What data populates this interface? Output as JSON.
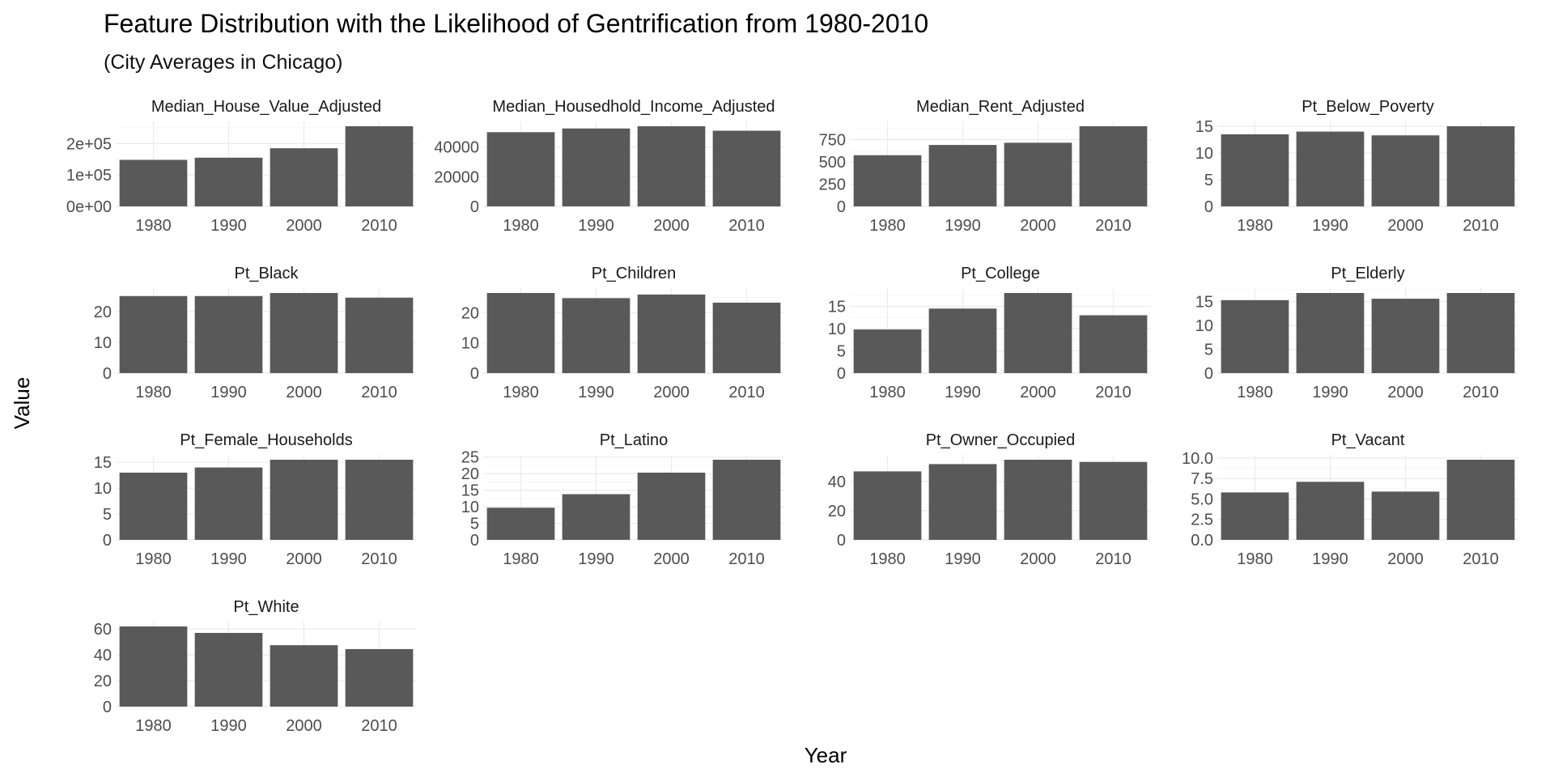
{
  "chart_data": {
    "type": "bar",
    "title": "Feature Distribution with the Likelihood of Gentrification from 1980-2010",
    "subtitle": "(City Averages in Chicago)",
    "xlabel": "Year",
    "ylabel": "Value",
    "categories": [
      "1980",
      "1990",
      "2000",
      "2010"
    ],
    "grid": true,
    "legend": "none",
    "bar_color": "#595959",
    "panels": [
      {
        "name": "Median_House_Value_Adjusted",
        "values": [
          148000,
          155000,
          185000,
          255000
        ],
        "ylim": [
          0,
          255000
        ],
        "yticks": [
          0,
          100000,
          200000
        ],
        "yticklabels": [
          "0e+00",
          "1e+05",
          "2e+05"
        ]
      },
      {
        "name": "Median_Housedhold_Income_Adjusted",
        "values": [
          50000,
          52500,
          54000,
          51000
        ],
        "ylim": [
          0,
          54000
        ],
        "yticks": [
          0,
          20000,
          40000
        ],
        "yticklabels": [
          "0",
          "20000",
          "40000"
        ]
      },
      {
        "name": "Median_Rent_Adjusted",
        "values": [
          575,
          690,
          715,
          900
        ],
        "ylim": [
          0,
          900
        ],
        "yticks": [
          0,
          250,
          500,
          750
        ],
        "yticklabels": [
          "0",
          "250",
          "500",
          "750"
        ]
      },
      {
        "name": "Pt_Below_Poverty",
        "values": [
          13.5,
          14,
          13.3,
          15
        ],
        "ylim": [
          0,
          15
        ],
        "yticks": [
          0,
          5,
          10,
          15
        ],
        "yticklabels": [
          "0",
          "5",
          "10",
          "15"
        ]
      },
      {
        "name": "Pt_Black",
        "values": [
          25,
          25,
          26,
          24.5
        ],
        "ylim": [
          0,
          26
        ],
        "yticks": [
          0,
          10,
          20
        ],
        "yticklabels": [
          "0",
          "10",
          "20"
        ]
      },
      {
        "name": "Pt_Children",
        "values": [
          26.5,
          24.8,
          26,
          23.3
        ],
        "ylim": [
          0,
          26.5
        ],
        "yticks": [
          0,
          10,
          20
        ],
        "yticklabels": [
          "0",
          "10",
          "20"
        ]
      },
      {
        "name": "Pt_College",
        "values": [
          9.8,
          14.5,
          18,
          13
        ],
        "ylim": [
          0,
          18
        ],
        "yticks": [
          0,
          5,
          10,
          15
        ],
        "yticklabels": [
          "0",
          "5",
          "10",
          "15"
        ]
      },
      {
        "name": "Pt_Elderly",
        "values": [
          15.3,
          16.8,
          15.6,
          16.8
        ],
        "ylim": [
          0,
          16.8
        ],
        "yticks": [
          0,
          5,
          10,
          15
        ],
        "yticklabels": [
          "0",
          "5",
          "10",
          "15"
        ]
      },
      {
        "name": "Pt_Female_Households",
        "values": [
          13,
          14,
          15.5,
          15.5
        ],
        "ylim": [
          0,
          15.5
        ],
        "yticks": [
          0,
          5,
          10,
          15
        ],
        "yticklabels": [
          "0",
          "5",
          "10",
          "15"
        ]
      },
      {
        "name": "Pt_Latino",
        "values": [
          9.7,
          13.8,
          20.3,
          24.2
        ],
        "ylim": [
          0,
          24.2
        ],
        "yticks": [
          0,
          5,
          10,
          15,
          20,
          25
        ],
        "yticklabels": [
          "0",
          "5",
          "10",
          "15",
          "20",
          "25"
        ]
      },
      {
        "name": "Pt_Owner_Occupied",
        "values": [
          47,
          52,
          55,
          53.5
        ],
        "ylim": [
          0,
          55
        ],
        "yticks": [
          0,
          20,
          40
        ],
        "yticklabels": [
          "0",
          "20",
          "40"
        ]
      },
      {
        "name": "Pt_Vacant",
        "values": [
          5.8,
          7.1,
          5.9,
          9.8
        ],
        "ylim": [
          0,
          9.8
        ],
        "yticks": [
          0,
          2.5,
          5,
          7.5,
          10
        ],
        "yticklabels": [
          "0.0",
          "2.5",
          "5.0",
          "7.5",
          "10.0"
        ]
      },
      {
        "name": "Pt_White",
        "values": [
          62,
          57,
          47.5,
          44.5
        ],
        "ylim": [
          0,
          62
        ],
        "yticks": [
          0,
          20,
          40,
          60
        ],
        "yticklabels": [
          "0",
          "20",
          "40",
          "60"
        ]
      }
    ]
  }
}
